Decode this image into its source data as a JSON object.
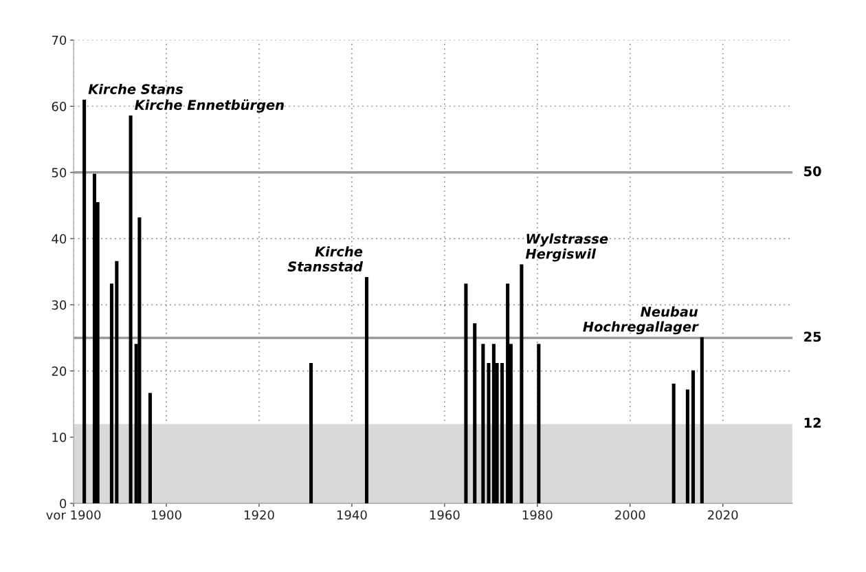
{
  "chart_data": {
    "type": "bar",
    "x": [
      1882.3,
      1884.5,
      1885.2,
      1888.2,
      1889.3,
      1892.3,
      1893.5,
      1894.2,
      1896.5,
      1931.2,
      1943.2,
      1964.6,
      1966.5,
      1968.3,
      1969.5,
      1970.6,
      1971.3,
      1972.4,
      1973.6,
      1974.3,
      1976.6,
      1980.3,
      2009.4,
      2012.4,
      2013.6,
      2015.5
    ],
    "values": [
      61,
      49.8,
      45.5,
      33.2,
      36.6,
      58.6,
      24.1,
      43.2,
      16.7,
      21.2,
      34.2,
      33.2,
      27.2,
      24.1,
      21.2,
      24.1,
      21.2,
      21.2,
      33.2,
      24.1,
      36.1,
      24.1,
      18.1,
      17.2,
      20.1,
      25.1
    ],
    "color": "#000000",
    "xlim": [
      1880,
      2035
    ],
    "xticks": [
      {
        "value": 1880,
        "label": "vor 1900"
      },
      1900,
      1920,
      1940,
      1960,
      1980,
      2000,
      2020
    ],
    "ylim": [
      0,
      70
    ],
    "yticks": [
      0,
      10,
      20,
      30,
      40,
      50,
      60,
      70
    ],
    "grid": true,
    "ref_lines": [
      {
        "axis": "y",
        "value": 50,
        "label": "50",
        "color": "#999999"
      },
      {
        "axis": "y",
        "value": 25,
        "label": "25",
        "color": "#999999"
      }
    ],
    "bands": [
      {
        "axis": "y",
        "from": 0,
        "to": 12,
        "label": "12",
        "color": "#d9d9d9"
      }
    ],
    "annotations": [
      {
        "text": "Kirche Stans",
        "x": 1882.3,
        "y": 61
      },
      {
        "text": "Kirche Ennetbürgen",
        "x": 1892.3,
        "y": 58.6
      },
      {
        "text": "Kirche\nStansstad",
        "x": 1943.2,
        "y": 34.2
      },
      {
        "text": "Wylstrasse\nHergiswil",
        "x": 1976.6,
        "y": 36.1
      },
      {
        "text": "Neubau\nHochregallager",
        "x": 2015.5,
        "y": 25.1
      }
    ]
  }
}
